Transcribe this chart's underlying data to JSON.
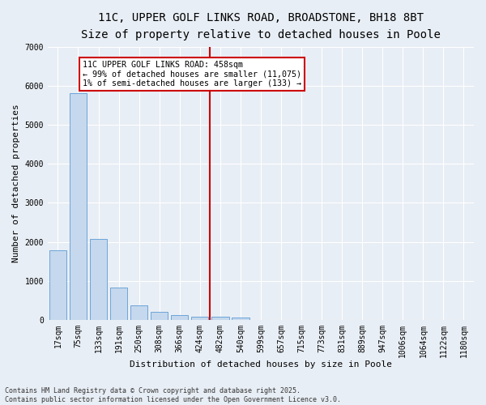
{
  "title1": "11C, UPPER GOLF LINKS ROAD, BROADSTONE, BH18 8BT",
  "title2": "Size of property relative to detached houses in Poole",
  "xlabel": "Distribution of detached houses by size in Poole",
  "ylabel": "Number of detached properties",
  "categories": [
    "17sqm",
    "75sqm",
    "133sqm",
    "191sqm",
    "250sqm",
    "308sqm",
    "366sqm",
    "424sqm",
    "482sqm",
    "540sqm",
    "599sqm",
    "657sqm",
    "715sqm",
    "773sqm",
    "831sqm",
    "889sqm",
    "947sqm",
    "1006sqm",
    "1064sqm",
    "1122sqm",
    "1180sqm"
  ],
  "values": [
    1780,
    5820,
    2080,
    820,
    370,
    210,
    120,
    90,
    70,
    50,
    0,
    0,
    0,
    0,
    0,
    0,
    0,
    0,
    0,
    0,
    0
  ],
  "bar_color": "#c5d8ed",
  "bar_edge_color": "#5b9bd5",
  "vline_pos": 7.5,
  "vline_color": "#cc0000",
  "annotation_text": "11C UPPER GOLF LINKS ROAD: 458sqm\n← 99% of detached houses are smaller (11,075)\n1% of semi-detached houses are larger (133) →",
  "annotation_box_color": "#cc0000",
  "ylim": [
    0,
    7000
  ],
  "yticks": [
    0,
    1000,
    2000,
    3000,
    4000,
    5000,
    6000,
    7000
  ],
  "bg_color": "#e8eef5",
  "footer": "Contains HM Land Registry data © Crown copyright and database right 2025.\nContains public sector information licensed under the Open Government Licence v3.0.",
  "grid_color": "#ffffff",
  "title_fontsize": 10,
  "subtitle_fontsize": 9,
  "axis_label_fontsize": 8,
  "tick_fontsize": 7,
  "footer_fontsize": 6
}
